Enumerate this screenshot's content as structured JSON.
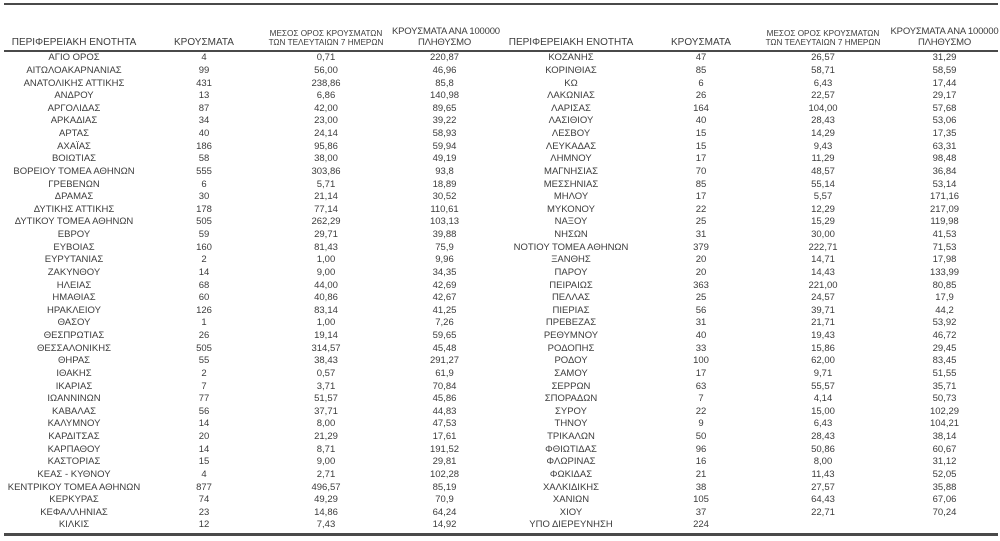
{
  "colors": {
    "background": "#ffffff",
    "text": "#3c3c3c",
    "rule": "#4a4a4a"
  },
  "table": {
    "headers": {
      "region": "ΠΕΡΙΦΕΡΕΙΑΚΗ ΕΝΟΤΗΤΑ",
      "cases": "ΚΡΟΥΣΜΑΤΑ",
      "avg7_line1": "ΜΕΣΟΣ ΟΡΟΣ ΚΡΟΥΣΜΑΤΩΝ",
      "avg7_line2": "ΤΩΝ ΤΕΛΕΥΤΑΙΩΝ 7 ΗΜΕΡΩΝ",
      "per100k_line1": "ΚΡΟΥΣΜΑΤΑ ΑΝΑ 100000",
      "per100k_line2": "ΠΛΗΘΥΣΜΟ"
    },
    "left_rows": [
      {
        "name": "ΑΓΙΟ ΟΡΟΣ",
        "cases": "4",
        "avg7": "0,71",
        "per100k": "220,87"
      },
      {
        "name": "ΑΙΤΩΛΟΑΚΑΡΝΑΝΙΑΣ",
        "cases": "99",
        "avg7": "56,00",
        "per100k": "46,96"
      },
      {
        "name": "ΑΝΑΤΟΛΙΚΗΣ ΑΤΤΙΚΗΣ",
        "cases": "431",
        "avg7": "238,86",
        "per100k": "85,8"
      },
      {
        "name": "ΑΝΔΡΟΥ",
        "cases": "13",
        "avg7": "6,86",
        "per100k": "140,98"
      },
      {
        "name": "ΑΡΓΟΛΙΔΑΣ",
        "cases": "87",
        "avg7": "42,00",
        "per100k": "89,65"
      },
      {
        "name": "ΑΡΚΑΔΙΑΣ",
        "cases": "34",
        "avg7": "23,00",
        "per100k": "39,22"
      },
      {
        "name": "ΑΡΤΑΣ",
        "cases": "40",
        "avg7": "24,14",
        "per100k": "58,93"
      },
      {
        "name": "ΑΧΑΪΑΣ",
        "cases": "186",
        "avg7": "95,86",
        "per100k": "59,94"
      },
      {
        "name": "ΒΟΙΩΤΙΑΣ",
        "cases": "58",
        "avg7": "38,00",
        "per100k": "49,19"
      },
      {
        "name": "ΒΟΡΕΙΟΥ ΤΟΜΕΑ ΑΘΗΝΩΝ",
        "cases": "555",
        "avg7": "303,86",
        "per100k": "93,8"
      },
      {
        "name": "ΓΡΕΒΕΝΩΝ",
        "cases": "6",
        "avg7": "5,71",
        "per100k": "18,89"
      },
      {
        "name": "ΔΡΑΜΑΣ",
        "cases": "30",
        "avg7": "21,14",
        "per100k": "30,52"
      },
      {
        "name": "ΔΥΤΙΚΗΣ ΑΤΤΙΚΗΣ",
        "cases": "178",
        "avg7": "77,14",
        "per100k": "110,61"
      },
      {
        "name": "ΔΥΤΙΚΟΥ ΤΟΜΕΑ ΑΘΗΝΩΝ",
        "cases": "505",
        "avg7": "262,29",
        "per100k": "103,13"
      },
      {
        "name": "ΕΒΡΟΥ",
        "cases": "59",
        "avg7": "29,71",
        "per100k": "39,88"
      },
      {
        "name": "ΕΥΒΟΙΑΣ",
        "cases": "160",
        "avg7": "81,43",
        "per100k": "75,9"
      },
      {
        "name": "ΕΥΡΥΤΑΝΙΑΣ",
        "cases": "2",
        "avg7": "1,00",
        "per100k": "9,96"
      },
      {
        "name": "ΖΑΚΥΝΘΟΥ",
        "cases": "14",
        "avg7": "9,00",
        "per100k": "34,35"
      },
      {
        "name": "ΗΛΕΙΑΣ",
        "cases": "68",
        "avg7": "44,00",
        "per100k": "42,69"
      },
      {
        "name": "ΗΜΑΘΙΑΣ",
        "cases": "60",
        "avg7": "40,86",
        "per100k": "42,67"
      },
      {
        "name": "ΗΡΑΚΛΕΙΟΥ",
        "cases": "126",
        "avg7": "83,14",
        "per100k": "41,25"
      },
      {
        "name": "ΘΑΣΟΥ",
        "cases": "1",
        "avg7": "1,00",
        "per100k": "7,26"
      },
      {
        "name": "ΘΕΣΠΡΩΤΙΑΣ",
        "cases": "26",
        "avg7": "19,14",
        "per100k": "59,65"
      },
      {
        "name": "ΘΕΣΣΑΛΟΝΙΚΗΣ",
        "cases": "505",
        "avg7": "314,57",
        "per100k": "45,48"
      },
      {
        "name": "ΘΗΡΑΣ",
        "cases": "55",
        "avg7": "38,43",
        "per100k": "291,27"
      },
      {
        "name": "ΙΘΑΚΗΣ",
        "cases": "2",
        "avg7": "0,57",
        "per100k": "61,9"
      },
      {
        "name": "ΙΚΑΡΙΑΣ",
        "cases": "7",
        "avg7": "3,71",
        "per100k": "70,84"
      },
      {
        "name": "ΙΩΑΝΝΙΝΩΝ",
        "cases": "77",
        "avg7": "51,57",
        "per100k": "45,86"
      },
      {
        "name": "ΚΑΒΑΛΑΣ",
        "cases": "56",
        "avg7": "37,71",
        "per100k": "44,83"
      },
      {
        "name": "ΚΑΛΥΜΝΟΥ",
        "cases": "14",
        "avg7": "8,00",
        "per100k": "47,53"
      },
      {
        "name": "ΚΑΡΔΙΤΣΑΣ",
        "cases": "20",
        "avg7": "21,29",
        "per100k": "17,61"
      },
      {
        "name": "ΚΑΡΠΑΘΟΥ",
        "cases": "14",
        "avg7": "8,71",
        "per100k": "191,52"
      },
      {
        "name": "ΚΑΣΤΟΡΙΑΣ",
        "cases": "15",
        "avg7": "9,00",
        "per100k": "29,81"
      },
      {
        "name": "ΚΕΑΣ - ΚΥΘΝΟΥ",
        "cases": "4",
        "avg7": "2,71",
        "per100k": "102,28"
      },
      {
        "name": "ΚΕΝΤΡΙΚΟΥ ΤΟΜΕΑ ΑΘΗΝΩΝ",
        "cases": "877",
        "avg7": "496,57",
        "per100k": "85,19"
      },
      {
        "name": "ΚΕΡΚΥΡΑΣ",
        "cases": "74",
        "avg7": "49,29",
        "per100k": "70,9"
      },
      {
        "name": "ΚΕΦΑΛΛΗΝΙΑΣ",
        "cases": "23",
        "avg7": "14,86",
        "per100k": "64,24"
      },
      {
        "name": "ΚΙΛΚΙΣ",
        "cases": "12",
        "avg7": "7,43",
        "per100k": "14,92"
      }
    ],
    "right_rows": [
      {
        "name": "ΚΟΖΑΝΗΣ",
        "cases": "47",
        "avg7": "26,57",
        "per100k": "31,29"
      },
      {
        "name": "ΚΟΡΙΝΘΙΑΣ",
        "cases": "85",
        "avg7": "58,71",
        "per100k": "58,59"
      },
      {
        "name": "ΚΩ",
        "cases": "6",
        "avg7": "6,43",
        "per100k": "17,44"
      },
      {
        "name": "ΛΑΚΩΝΙΑΣ",
        "cases": "26",
        "avg7": "22,57",
        "per100k": "29,17"
      },
      {
        "name": "ΛΑΡΙΣΑΣ",
        "cases": "164",
        "avg7": "104,00",
        "per100k": "57,68"
      },
      {
        "name": "ΛΑΣΙΘΙΟΥ",
        "cases": "40",
        "avg7": "28,43",
        "per100k": "53,06"
      },
      {
        "name": "ΛΕΣΒΟΥ",
        "cases": "15",
        "avg7": "14,29",
        "per100k": "17,35"
      },
      {
        "name": "ΛΕΥΚΑΔΑΣ",
        "cases": "15",
        "avg7": "9,43",
        "per100k": "63,31"
      },
      {
        "name": "ΛΗΜΝΟΥ",
        "cases": "17",
        "avg7": "11,29",
        "per100k": "98,48"
      },
      {
        "name": "ΜΑΓΝΗΣΙΑΣ",
        "cases": "70",
        "avg7": "48,57",
        "per100k": "36,84"
      },
      {
        "name": "ΜΕΣΣΗΝΙΑΣ",
        "cases": "85",
        "avg7": "55,14",
        "per100k": "53,14"
      },
      {
        "name": "ΜΗΛΟΥ",
        "cases": "17",
        "avg7": "5,57",
        "per100k": "171,16"
      },
      {
        "name": "ΜΥΚΟΝΟΥ",
        "cases": "22",
        "avg7": "12,29",
        "per100k": "217,09"
      },
      {
        "name": "ΝΑΞΟΥ",
        "cases": "25",
        "avg7": "15,29",
        "per100k": "119,98"
      },
      {
        "name": "ΝΗΣΩΝ",
        "cases": "31",
        "avg7": "30,00",
        "per100k": "41,53"
      },
      {
        "name": "ΝΟΤΙΟΥ ΤΟΜΕΑ ΑΘΗΝΩΝ",
        "cases": "379",
        "avg7": "222,71",
        "per100k": "71,53"
      },
      {
        "name": "ΞΑΝΘΗΣ",
        "cases": "20",
        "avg7": "14,71",
        "per100k": "17,98"
      },
      {
        "name": "ΠΑΡΟΥ",
        "cases": "20",
        "avg7": "14,43",
        "per100k": "133,99"
      },
      {
        "name": "ΠΕΙΡΑΙΩΣ",
        "cases": "363",
        "avg7": "221,00",
        "per100k": "80,85"
      },
      {
        "name": "ΠΕΛΛΑΣ",
        "cases": "25",
        "avg7": "24,57",
        "per100k": "17,9"
      },
      {
        "name": "ΠΙΕΡΙΑΣ",
        "cases": "56",
        "avg7": "39,71",
        "per100k": "44,2"
      },
      {
        "name": "ΠΡΕΒΕΖΑΣ",
        "cases": "31",
        "avg7": "21,71",
        "per100k": "53,92"
      },
      {
        "name": "ΡΕΘΥΜΝΟΥ",
        "cases": "40",
        "avg7": "19,43",
        "per100k": "46,72"
      },
      {
        "name": "ΡΟΔΟΠΗΣ",
        "cases": "33",
        "avg7": "15,86",
        "per100k": "29,45"
      },
      {
        "name": "ΡΟΔΟΥ",
        "cases": "100",
        "avg7": "62,00",
        "per100k": "83,45"
      },
      {
        "name": "ΣΑΜΟΥ",
        "cases": "17",
        "avg7": "9,71",
        "per100k": "51,55"
      },
      {
        "name": "ΣΕΡΡΩΝ",
        "cases": "63",
        "avg7": "55,57",
        "per100k": "35,71"
      },
      {
        "name": "ΣΠΟΡΑΔΩΝ",
        "cases": "7",
        "avg7": "4,14",
        "per100k": "50,73"
      },
      {
        "name": "ΣΥΡΟΥ",
        "cases": "22",
        "avg7": "15,00",
        "per100k": "102,29"
      },
      {
        "name": "ΤΗΝΟΥ",
        "cases": "9",
        "avg7": "6,43",
        "per100k": "104,21"
      },
      {
        "name": "ΤΡΙΚΑΛΩΝ",
        "cases": "50",
        "avg7": "28,43",
        "per100k": "38,14"
      },
      {
        "name": "ΦΘΙΩΤΙΔΑΣ",
        "cases": "96",
        "avg7": "50,86",
        "per100k": "60,67"
      },
      {
        "name": "ΦΛΩΡΙΝΑΣ",
        "cases": "16",
        "avg7": "8,00",
        "per100k": "31,12"
      },
      {
        "name": "ΦΩΚΙΔΑΣ",
        "cases": "21",
        "avg7": "11,43",
        "per100k": "52,05"
      },
      {
        "name": "ΧΑΛΚΙΔΙΚΗΣ",
        "cases": "38",
        "avg7": "27,57",
        "per100k": "35,88"
      },
      {
        "name": "ΧΑΝΙΩΝ",
        "cases": "105",
        "avg7": "64,43",
        "per100k": "67,06"
      },
      {
        "name": "ΧΙΟΥ",
        "cases": "37",
        "avg7": "22,71",
        "per100k": "70,24"
      },
      {
        "name": "ΥΠΟ ΔΙΕΡΕΥΝΗΣΗ",
        "cases": "224",
        "avg7": "",
        "per100k": ""
      }
    ]
  }
}
